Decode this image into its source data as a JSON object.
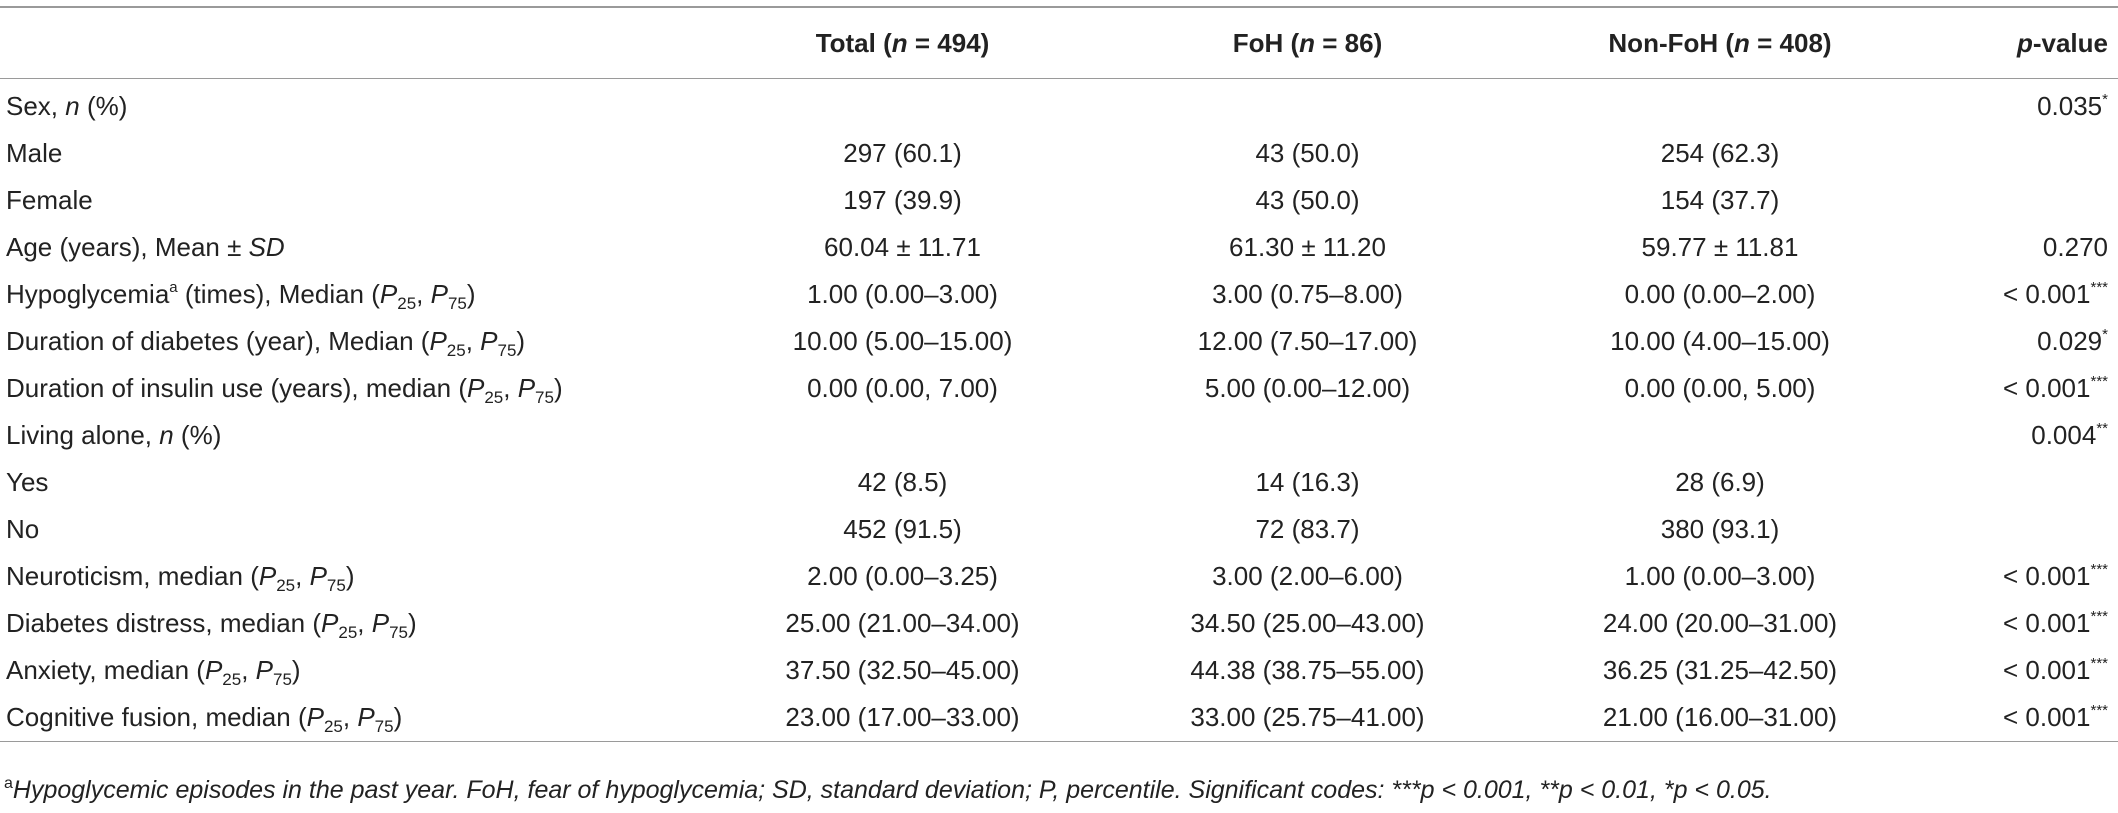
{
  "table": {
    "headers": {
      "col0": "",
      "total_label": "Total (",
      "total_n": "n",
      "total_rest": " = 494)",
      "foh_label": "FoH (",
      "foh_n": "n",
      "foh_rest": " = 86)",
      "nonfoh_label": "Non-FoH (",
      "nonfoh_n": "n",
      "nonfoh_rest": " = 408)",
      "p_italic": "p",
      "p_rest": "-value"
    },
    "rows": [
      {
        "label_pre": "Sex, ",
        "label_it": "n",
        "label_post": " (%)",
        "total": "",
        "foh": "",
        "nonfoh": "",
        "p": "0.035",
        "p_sig": "*"
      },
      {
        "label_pre": "Male",
        "label_it": "",
        "label_post": "",
        "total": "297 (60.1)",
        "foh": "43 (50.0)",
        "nonfoh": "254 (62.3)",
        "p": "",
        "p_sig": ""
      },
      {
        "label_pre": "Female",
        "label_it": "",
        "label_post": "",
        "total": "197 (39.9)",
        "foh": "43 (50.0)",
        "nonfoh": "154 (37.7)",
        "p": "",
        "p_sig": ""
      },
      {
        "label_pre": "Age (years), Mean ± ",
        "label_it": "SD",
        "label_post": "",
        "total": "60.04 ± 11.71",
        "foh": "61.30 ± 11.20",
        "nonfoh": "59.77 ± 11.81",
        "p": "0.270",
        "p_sig": ""
      },
      {
        "label_pre": "Hypoglycemia",
        "label_sup": "a",
        "label_post": " (times), Median (",
        "p1": "P",
        "p1sub": "25",
        "comma": ", ",
        "p2": "P",
        "p2sub": "75",
        "close": ")",
        "total": "1.00 (0.00–3.00)",
        "foh": "3.00 (0.75–8.00)",
        "nonfoh": "0.00 (0.00–2.00)",
        "p": "< 0.001",
        "p_sig": "***"
      },
      {
        "label_pre": "Duration of diabetes (year), Median (",
        "p1": "P",
        "p1sub": "25",
        "comma": ", ",
        "p2": "P",
        "p2sub": "75",
        "close": ")",
        "total": "10.00 (5.00–15.00)",
        "foh": "12.00 (7.50–17.00)",
        "nonfoh": "10.00 (4.00–15.00)",
        "p": "0.029",
        "p_sig": "*"
      },
      {
        "label_pre": "Duration of insulin use (years), median (",
        "p1": "P",
        "p1sub": "25",
        "comma": ", ",
        "p2": "P",
        "p2sub": "75",
        "close": ")",
        "total": "0.00 (0.00, 7.00)",
        "foh": "5.00 (0.00–12.00)",
        "nonfoh": "0.00 (0.00, 5.00)",
        "p": "< 0.001",
        "p_sig": "***"
      },
      {
        "label_pre": "Living alone, ",
        "label_it": "n",
        "label_post": " (%)",
        "total": "",
        "foh": "",
        "nonfoh": "",
        "p": "0.004",
        "p_sig": "**"
      },
      {
        "label_pre": "Yes",
        "label_it": "",
        "label_post": "",
        "total": "42 (8.5)",
        "foh": "14 (16.3)",
        "nonfoh": "28 (6.9)",
        "p": "",
        "p_sig": ""
      },
      {
        "label_pre": "No",
        "label_it": "",
        "label_post": "",
        "total": "452 (91.5)",
        "foh": "72 (83.7)",
        "nonfoh": "380 (93.1)",
        "p": "",
        "p_sig": ""
      },
      {
        "label_pre": "Neuroticism, median (",
        "p1": "P",
        "p1sub": "25",
        "comma": ", ",
        "p2": "P",
        "p2sub": "75",
        "close": ")",
        "total": "2.00 (0.00–3.25)",
        "foh": "3.00 (2.00–6.00)",
        "nonfoh": "1.00 (0.00–3.00)",
        "p": "< 0.001",
        "p_sig": "***"
      },
      {
        "label_pre": "Diabetes distress, median (",
        "p1": "P",
        "p1sub": "25",
        "comma": ", ",
        "p2": "P",
        "p2sub": "75",
        "close": ")",
        "total": "25.00 (21.00–34.00)",
        "foh": "34.50 (25.00–43.00)",
        "nonfoh": "24.00 (20.00–31.00)",
        "p": "< 0.001",
        "p_sig": "***"
      },
      {
        "label_pre": "Anxiety, median (",
        "p1": "P",
        "p1sub": "25",
        "comma": ", ",
        "p2": "P",
        "p2sub": "75",
        "close": ")",
        "total": "37.50 (32.50–45.00)",
        "foh": "44.38 (38.75–55.00)",
        "nonfoh": "36.25 (31.25–42.50)",
        "p": "< 0.001",
        "p_sig": "***"
      },
      {
        "label_pre": "Cognitive fusion, median (",
        "p1": "P",
        "p1sub": "25",
        "comma": ", ",
        "p2": "P",
        "p2sub": "75",
        "close": ")",
        "total": "23.00 (17.00–33.00)",
        "foh": "33.00 (25.75–41.00)",
        "nonfoh": "21.00 (16.00–31.00)",
        "p": "< 0.001",
        "p_sig": "***"
      }
    ]
  },
  "footnote": {
    "mark": "a",
    "text": "Hypoglycemic episodes in the past year. FoH, fear of hypoglycemia; SD, standard deviation; P, percentile. Significant codes: ***p < 0.001, **p < 0.01, *p < 0.05."
  }
}
